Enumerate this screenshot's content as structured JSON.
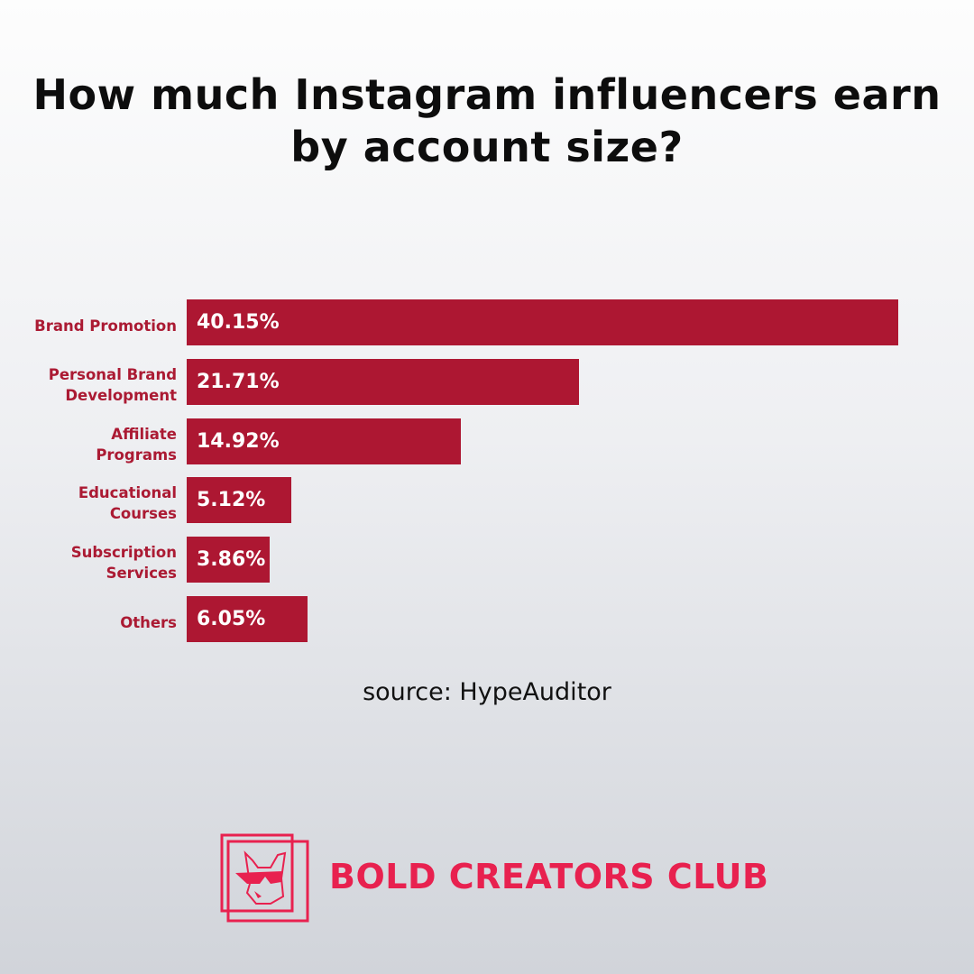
{
  "chart_data": {
    "type": "bar",
    "orientation": "horizontal",
    "title": "How much Instagram influencers earn by account size?",
    "categories": [
      "Brand Promotion",
      "Personal Brand\nDevelopment",
      "Affiliate\nPrograms",
      "Educational\nCourses",
      "Subscription\nServices",
      "Others"
    ],
    "values": [
      40.15,
      21.71,
      14.92,
      5.12,
      3.86,
      6.05
    ],
    "value_labels": [
      "40.15%",
      "21.71%",
      "14.92%",
      "5.12%",
      "3.86%",
      "6.05%"
    ],
    "unit": "%",
    "grid": false,
    "bar_color": "#ad1732",
    "label_color": "#ab1a33"
  },
  "source": "source: HypeAuditor",
  "brand": {
    "name": "BOLD CREATORS CLUB",
    "color": "#e8214f",
    "logo_icon": "bulldog-sunglasses-icon"
  }
}
